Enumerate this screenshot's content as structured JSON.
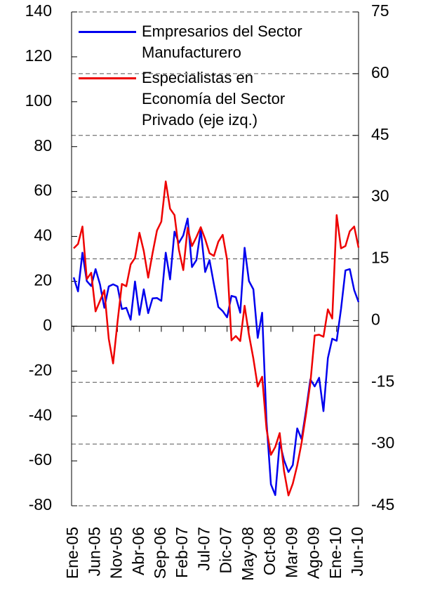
{
  "chart_data": {
    "type": "line",
    "categories": [
      "Ene-05",
      null,
      null,
      null,
      null,
      "Jun-05",
      null,
      null,
      null,
      null,
      "Nov-05",
      null,
      null,
      null,
      null,
      "Abr-06",
      null,
      null,
      null,
      null,
      "Sep-06",
      null,
      null,
      null,
      null,
      "Feb-07",
      null,
      null,
      null,
      null,
      "Jul-07",
      null,
      null,
      null,
      null,
      "Dic-07",
      null,
      null,
      null,
      null,
      "May-08",
      null,
      null,
      null,
      null,
      "Oct-08",
      null,
      null,
      null,
      null,
      "Mar-09",
      null,
      null,
      null,
      null,
      "Ago-09",
      null,
      null,
      null,
      null,
      "Ene-10",
      null,
      null,
      null,
      null,
      "Jun-10"
    ],
    "series": [
      {
        "name": "Empresarios del Sector Manufacturero",
        "color": "#0000ee",
        "axis": "y2",
        "values": [
          10.5,
          7.1,
          16.5,
          9.6,
          8.4,
          12.5,
          8.8,
          3.1,
          8.3,
          8.8,
          8.3,
          2.8,
          3.1,
          0.2,
          9.5,
          1.4,
          7.6,
          1.8,
          5.4,
          5.5,
          4.8,
          16.5,
          10,
          21.6,
          18.9,
          20.7,
          24.8,
          13,
          14.7,
          22.1,
          11.8,
          14.7,
          8.8,
          3.3,
          2.3,
          0.8,
          6,
          5.7,
          1.9,
          17.7,
          9.6,
          7.6,
          -4.2,
          1.9,
          -24.5,
          -39.8,
          -42.4,
          -29.6,
          -33.9,
          -36.8,
          -35.1,
          -26.2,
          -28.8,
          -22,
          -14.3,
          -16,
          -13.9,
          -22,
          -9.1,
          -4.4,
          -4.9,
          2.8,
          12.2,
          12.5,
          7.4,
          4.5
        ]
      },
      {
        "name": "Especialistas en Economía del Sector Privado (eje izq.)",
        "color": "#ee0000",
        "values": [
          34.7,
          36.6,
          44.4,
          21,
          23.8,
          6.6,
          11.3,
          16,
          -5.6,
          -16.6,
          1.9,
          18.8,
          17.8,
          27.5,
          30.4,
          41.6,
          33.5,
          21.6,
          32.5,
          42.6,
          46.6,
          64.5,
          52.3,
          49.5,
          34.1,
          25,
          43.8,
          35.7,
          39.7,
          44.1,
          38.8,
          32.5,
          31.3,
          37.6,
          40.7,
          29.7,
          -6.3,
          -4.4,
          -6.6,
          9.1,
          -3.8,
          -14.4,
          -26.9,
          -22.5,
          -45.7,
          -57.3,
          -53.8,
          -47.6,
          -64.5,
          -75.4,
          -70.1,
          -62,
          -52,
          -39.4,
          -25.4,
          -4.1,
          -3.8,
          -4.7,
          7.5,
          3.4,
          49.5,
          34.7,
          35.7,
          42.3,
          44.4,
          35
        ]
      }
    ],
    "ylim": [
      -80,
      140
    ],
    "yticks": [
      -80,
      -60,
      -40,
      -20,
      0,
      20,
      40,
      60,
      80,
      100,
      120,
      140
    ],
    "y2lim": [
      -45,
      75
    ],
    "y2ticks": [
      -45,
      -30,
      -15,
      0,
      15,
      30,
      45,
      60,
      75
    ],
    "grid": true
  }
}
